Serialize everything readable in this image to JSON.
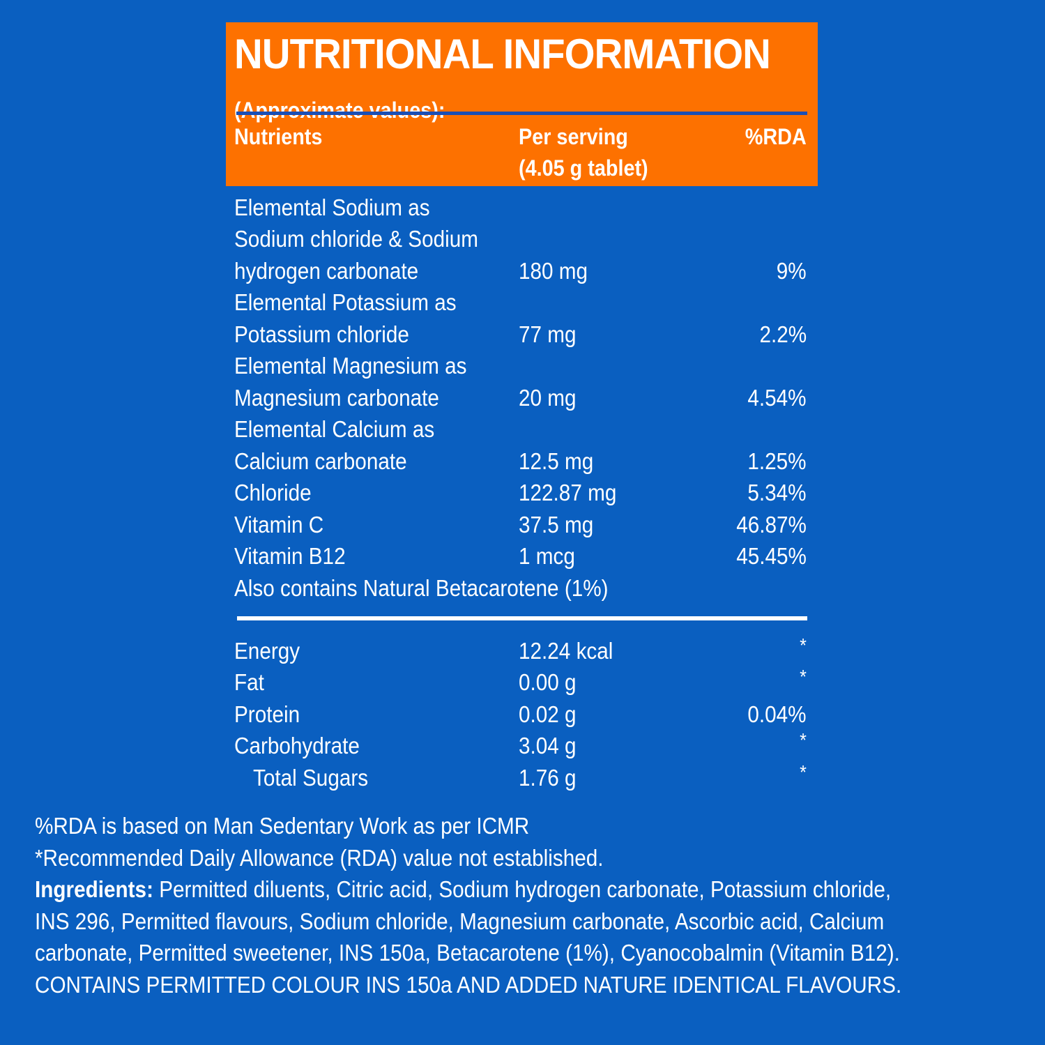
{
  "header": {
    "title": "NUTRITIONAL INFORMATION",
    "subtitle": "(Approximate values):",
    "col_nutrients": "Nutrients",
    "col_serving_1": "Per serving",
    "col_serving_2": "(4.05 g tablet)",
    "col_rda": "%RDA"
  },
  "rows": [
    {
      "nutrient": "Elemental Sodium as",
      "amount": "",
      "rda": ""
    },
    {
      "nutrient": "Sodium chloride & Sodium",
      "amount": "",
      "rda": ""
    },
    {
      "nutrient": "hydrogen carbonate",
      "amount": "180 mg",
      "rda": "9%"
    },
    {
      "nutrient": "Elemental Potassium as",
      "amount": "",
      "rda": ""
    },
    {
      "nutrient": "Potassium chloride",
      "amount": "77 mg",
      "rda": "2.2%"
    },
    {
      "nutrient": "Elemental Magnesium as",
      "amount": "",
      "rda": ""
    },
    {
      "nutrient": "Magnesium carbonate",
      "amount": "20 mg",
      "rda": "4.54%"
    },
    {
      "nutrient": "Elemental Calcium as",
      "amount": "",
      "rda": ""
    },
    {
      "nutrient": "Calcium carbonate",
      "amount": "12.5 mg",
      "rda": "1.25%"
    },
    {
      "nutrient": "Chloride",
      "amount": "122.87 mg",
      "rda": "5.34%"
    },
    {
      "nutrient": "Vitamin C",
      "amount": "37.5 mg",
      "rda": "46.87%"
    },
    {
      "nutrient": "Vitamin B12",
      "amount": "1 mcg",
      "rda": "45.45%"
    },
    {
      "nutrient": "Also contains Natural Betacarotene (1%)",
      "amount": "",
      "rda": ""
    }
  ],
  "energy_rows": [
    {
      "nutrient": "Energy",
      "amount": "12.24 kcal",
      "rda": "*"
    },
    {
      "nutrient": "Fat",
      "amount": "0.00 g",
      "rda": "*"
    },
    {
      "nutrient": "Protein",
      "amount": "0.02 g",
      "rda": "0.04%"
    },
    {
      "nutrient": "Carbohydrate",
      "amount": "3.04 g",
      "rda": "*"
    },
    {
      "nutrient": "Total Sugars",
      "amount": "1.76 g",
      "rda": "*"
    }
  ],
  "footer": {
    "rda_note": "%RDA is based on Man Sedentary Work as per ICMR",
    "rda_not_established": "*Recommended Daily Allowance (RDA) value not established.",
    "ingredients_label": "Ingredients:",
    "ingredients_line1": " Permitted diluents, Citric acid, Sodium hydrogen carbonate, Potassium chloride,",
    "ingredients_line2": "INS 296, Permitted flavours, Sodium chloride, Magnesium carbonate, Ascorbic acid, Calcium",
    "ingredients_line3": "carbonate, Permitted sweetener, INS 150a, Betacarotene (1%), Cyanocobalmin (Vitamin B12).",
    "contains_note": "CONTAINS PERMITTED COLOUR INS 150a AND ADDED NATURE IDENTICAL FLAVOURS."
  },
  "colors": {
    "background": "#0a5fc0",
    "header_orange": "#fd7100",
    "text": "#ffffff"
  }
}
